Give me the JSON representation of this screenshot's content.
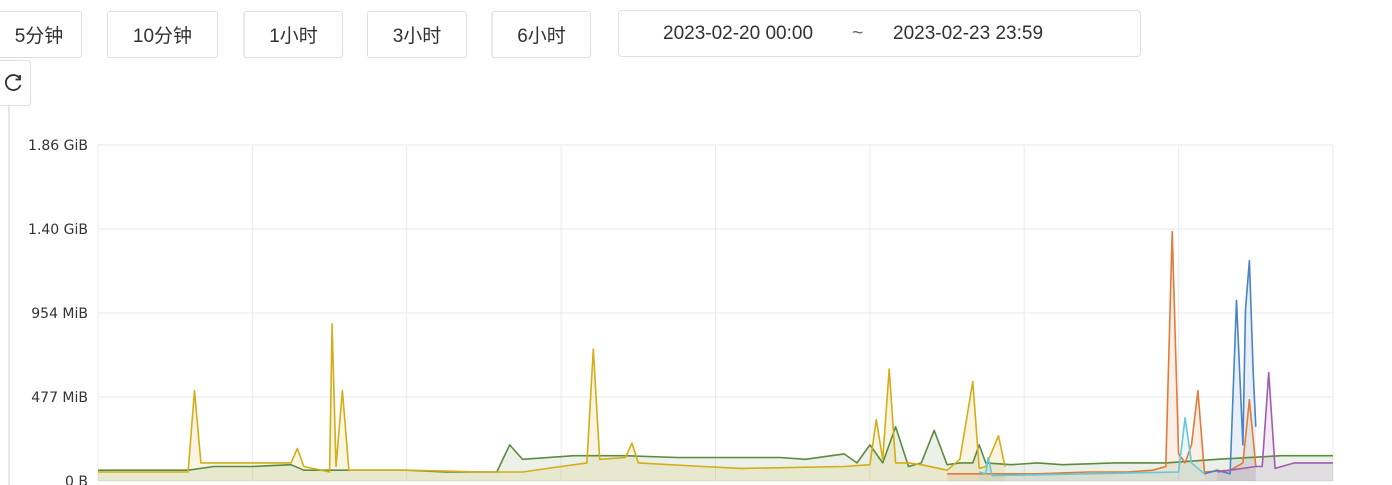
{
  "toolbar": {
    "ranges": [
      "5分钟",
      "10分钟",
      "1小时",
      "3小时",
      "6小时"
    ],
    "start": "2023-02-20 00:00",
    "separator": "~",
    "end": "2023-02-23 23:59",
    "refresh_icon": "refresh-icon"
  },
  "chart_data": {
    "type": "area",
    "y_ticks": [
      "1.86 GiB",
      "1.40 GiB",
      "954 MiB",
      "477 MiB",
      "0 B"
    ],
    "ylim": [
      0,
      1.86
    ],
    "y_unit": "GiB",
    "x_range": [
      0,
      96
    ],
    "x_unit": "hours since 2023-02-20 00:00",
    "grid": true,
    "series": [
      {
        "color": "#5b8c3e",
        "points": [
          [
            0,
            0.06
          ],
          [
            7,
            0.06
          ],
          [
            9,
            0.08
          ],
          [
            12,
            0.08
          ],
          [
            15,
            0.09
          ],
          [
            16,
            0.06
          ],
          [
            20,
            0.06
          ],
          [
            24,
            0.06
          ],
          [
            27,
            0.05
          ],
          [
            31,
            0.05
          ],
          [
            32,
            0.2
          ],
          [
            33,
            0.12
          ],
          [
            37,
            0.14
          ],
          [
            41,
            0.14
          ],
          [
            45,
            0.13
          ],
          [
            49,
            0.13
          ],
          [
            53,
            0.13
          ],
          [
            55,
            0.12
          ],
          [
            57,
            0.14
          ],
          [
            58,
            0.15
          ],
          [
            59,
            0.1
          ],
          [
            60,
            0.2
          ],
          [
            61,
            0.1
          ],
          [
            62,
            0.3
          ],
          [
            63,
            0.08
          ],
          [
            64,
            0.1
          ],
          [
            65,
            0.28
          ],
          [
            66,
            0.09
          ],
          [
            67,
            0.1
          ],
          [
            68,
            0.1
          ],
          [
            68.5,
            0.2
          ],
          [
            69,
            0.1
          ],
          [
            71,
            0.09
          ],
          [
            73,
            0.1
          ],
          [
            75,
            0.09
          ],
          [
            79,
            0.1
          ],
          [
            83,
            0.1
          ],
          [
            87,
            0.12
          ],
          [
            92,
            0.14
          ],
          [
            96,
            0.14
          ]
        ]
      },
      {
        "color": "#d4ad17",
        "points": [
          [
            0,
            0.05
          ],
          [
            7,
            0.05
          ],
          [
            7.5,
            0.5
          ],
          [
            8,
            0.1
          ],
          [
            12,
            0.1
          ],
          [
            15,
            0.1
          ],
          [
            15.5,
            0.18
          ],
          [
            16,
            0.08
          ],
          [
            18,
            0.05
          ],
          [
            18.2,
            0.87
          ],
          [
            18.5,
            0.08
          ],
          [
            19,
            0.5
          ],
          [
            19.5,
            0.06
          ],
          [
            24,
            0.06
          ],
          [
            30,
            0.05
          ],
          [
            33,
            0.05
          ],
          [
            36,
            0.08
          ],
          [
            38,
            0.1
          ],
          [
            38.5,
            0.73
          ],
          [
            39,
            0.12
          ],
          [
            41,
            0.13
          ],
          [
            41.5,
            0.21
          ],
          [
            42,
            0.1
          ],
          [
            47,
            0.08
          ],
          [
            50,
            0.07
          ],
          [
            58,
            0.08
          ],
          [
            60,
            0.09
          ],
          [
            60.5,
            0.34
          ],
          [
            61,
            0.12
          ],
          [
            61.5,
            0.62
          ],
          [
            62,
            0.1
          ],
          [
            63,
            0.1
          ],
          [
            64,
            0.09
          ],
          [
            66,
            0.06
          ],
          [
            67,
            0.12
          ],
          [
            68,
            0.55
          ],
          [
            68.5,
            0.07
          ],
          [
            69,
            0.08
          ],
          [
            70,
            0.25
          ],
          [
            70.5,
            0.08
          ]
        ]
      },
      {
        "color": "#e07b39",
        "points": [
          [
            66,
            0.04
          ],
          [
            70,
            0.04
          ],
          [
            73,
            0.04
          ],
          [
            77,
            0.05
          ],
          [
            80,
            0.05
          ],
          [
            82,
            0.06
          ],
          [
            83,
            0.08
          ],
          [
            83.5,
            1.38
          ],
          [
            84,
            0.15
          ],
          [
            84.5,
            0.1
          ],
          [
            85,
            0.2
          ],
          [
            85.5,
            0.5
          ],
          [
            86,
            0.05
          ],
          [
            88,
            0.06
          ],
          [
            89,
            0.1
          ],
          [
            89.5,
            0.45
          ],
          [
            90,
            0.08
          ]
        ]
      },
      {
        "color": "#4b83c8",
        "points": [
          [
            86,
            0.04
          ],
          [
            87,
            0.06
          ],
          [
            88,
            0.04
          ],
          [
            88.5,
            1.0
          ],
          [
            89,
            0.2
          ],
          [
            89.2,
            0.95
          ],
          [
            89.5,
            1.22
          ],
          [
            89.8,
            0.6
          ],
          [
            90,
            0.3
          ]
        ]
      },
      {
        "color": "#63c9d9",
        "points": [
          [
            68.5,
            0.05
          ],
          [
            69,
            0.04
          ],
          [
            69.2,
            0.13
          ],
          [
            69.5,
            0.03
          ],
          [
            84,
            0.05
          ],
          [
            84.5,
            0.35
          ],
          [
            85,
            0.1
          ],
          [
            86,
            0.04
          ]
        ]
      },
      {
        "color": "#a05cb5",
        "points": [
          [
            87,
            0.05
          ],
          [
            88,
            0.06
          ],
          [
            90,
            0.08
          ],
          [
            90.5,
            0.08
          ],
          [
            91,
            0.6
          ],
          [
            91.5,
            0.07
          ],
          [
            93,
            0.1
          ],
          [
            96,
            0.1
          ]
        ]
      }
    ],
    "title": "",
    "xlabel": "",
    "ylabel": ""
  }
}
